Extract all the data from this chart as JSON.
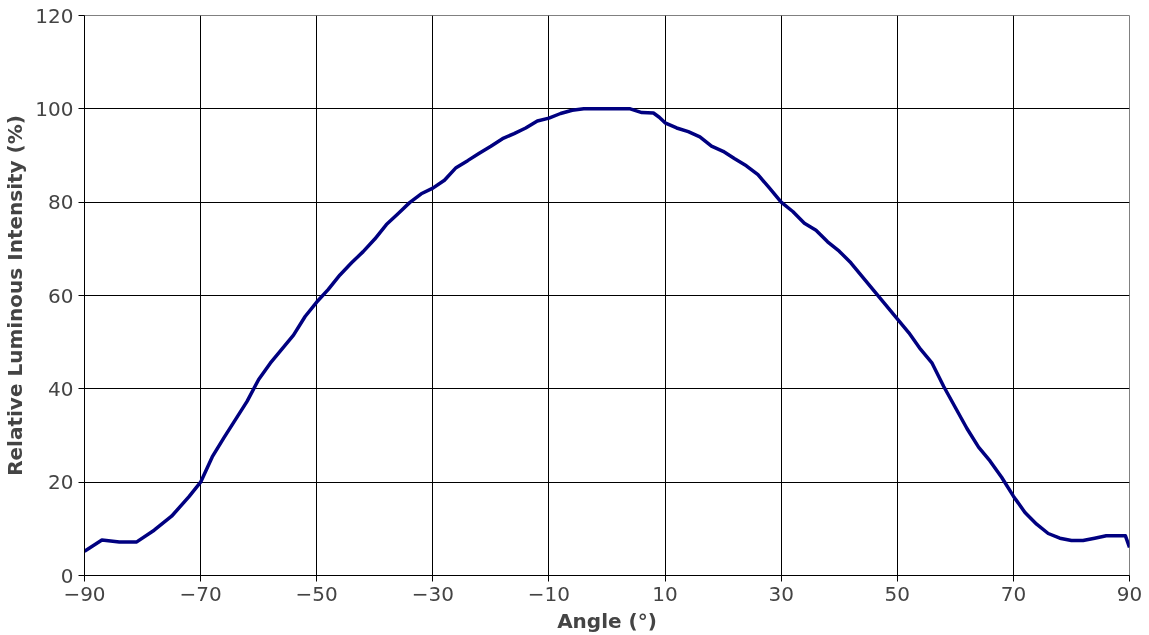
{
  "chart_data": {
    "type": "line",
    "xlabel": "Angle (°)",
    "ylabel": "Relative Luminous Intensity (%)",
    "xlim": [
      -90,
      90
    ],
    "xticks": [
      -90,
      -70,
      -50,
      -30,
      -10,
      10,
      30,
      50,
      70,
      90
    ],
    "ylim": [
      0,
      120
    ],
    "yticks": [
      0,
      20,
      40,
      60,
      80,
      100,
      120
    ],
    "grid": true,
    "marker": "none",
    "line_style": "solid",
    "series": [
      {
        "color": "#000080",
        "x": [
          -90,
          -87,
          -84,
          -81,
          -78,
          -75,
          -72,
          -70,
          -68,
          -66,
          -64,
          -62,
          -60,
          -58,
          -56,
          -54,
          -52,
          -50,
          -48,
          -46,
          -44,
          -42,
          -40,
          -38,
          -36,
          -34,
          -32,
          -30,
          -28,
          -26,
          -24,
          -22,
          -20,
          -18,
          -16,
          -14,
          -12,
          -10,
          -8,
          -6,
          -4,
          0,
          4,
          6,
          8,
          9,
          10,
          12,
          14,
          16,
          18,
          20,
          22,
          24,
          26,
          28,
          30,
          32,
          34,
          36,
          38,
          40,
          42,
          44,
          46,
          48,
          50,
          52,
          54,
          56,
          58,
          60,
          62,
          64,
          66,
          68,
          70,
          72,
          74,
          76,
          78,
          80,
          82,
          84,
          86,
          88,
          89.3,
          90
        ],
        "values": [
          5.2,
          7.6,
          7.2,
          7.2,
          9.7,
          12.7,
          16.9,
          20,
          25.4,
          29.5,
          33.4,
          37.3,
          42,
          45.5,
          48.5,
          51.5,
          55.5,
          58.6,
          61.3,
          64.4,
          67,
          69.4,
          72.1,
          75.2,
          77.5,
          79.9,
          81.8,
          83,
          84.7,
          87.4,
          88.9,
          90.5,
          92,
          93.6,
          94.7,
          95.9,
          97.4,
          98,
          99,
          99.7,
          100,
          100,
          100,
          99.2,
          99.1,
          98.2,
          97,
          95.9,
          95.1,
          94,
          92,
          90.9,
          89.3,
          87.8,
          85.9,
          83,
          80,
          78,
          75.5,
          74,
          71.5,
          69.5,
          67,
          64,
          61,
          58,
          55,
          52,
          48.5,
          45.5,
          40.5,
          36,
          31.5,
          27.5,
          24.5,
          21,
          17,
          13.5,
          11,
          9,
          8,
          7.5,
          7.5,
          8,
          8.5,
          8.5,
          8.5,
          6
        ]
      }
    ]
  }
}
